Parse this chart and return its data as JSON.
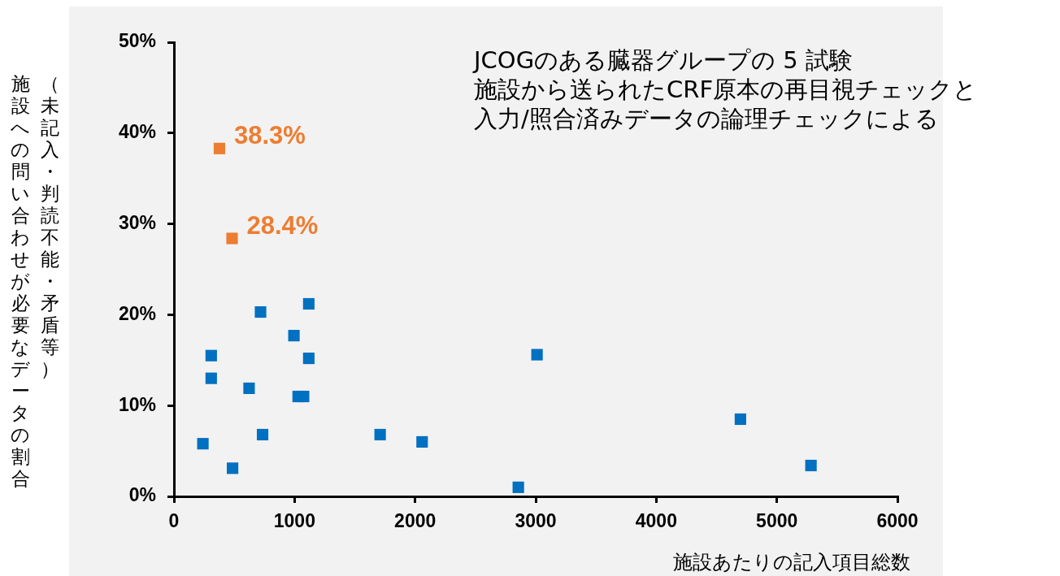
{
  "chart_data": {
    "type": "scatter",
    "xlabel": "施設あたりの記入項目総数",
    "ylabel": "施設への問い合わせが必要なデータの割合（未記入・判読不能・矛盾等）",
    "annotations": [
      "JCOGのある臓器グループの 5 試験",
      "施設から送られたCRF原本の再目視チェックと",
      "入力/照合済みデータの論理チェックによる"
    ],
    "xlim": [
      0,
      6000
    ],
    "xticks": [
      0,
      1000,
      2000,
      3000,
      4000,
      5000,
      6000
    ],
    "ylim": [
      0,
      50
    ],
    "yticks": [
      {
        "value": 0,
        "label": "0%"
      },
      {
        "value": 10,
        "label": "10%"
      },
      {
        "value": 20,
        "label": "20%"
      },
      {
        "value": 30,
        "label": "30%"
      },
      {
        "value": 40,
        "label": "40%"
      },
      {
        "value": 50,
        "label": "50%"
      }
    ],
    "grid": false,
    "legend": false,
    "marker": "square",
    "series": [
      {
        "color": "#0070c0",
        "x": [
          718,
          1118,
          995,
          309,
          1118,
          309,
          623,
          1030,
          1075,
          735,
          240,
          486,
          1710,
          2058,
          3011,
          2856,
          4698,
          5283
        ],
        "values": [
          20.3,
          21.2,
          17.7,
          15.5,
          15.2,
          13.0,
          11.9,
          11.0,
          11.0,
          6.8,
          5.8,
          3.1,
          6.8,
          6.0,
          15.6,
          1.0,
          8.5,
          3.4
        ]
      },
      {
        "color": "#ed7d31",
        "x": [
          377,
          482
        ],
        "values": [
          38.3,
          28.4
        ],
        "value_labels": [
          "38.3%",
          "28.4%"
        ]
      }
    ]
  }
}
